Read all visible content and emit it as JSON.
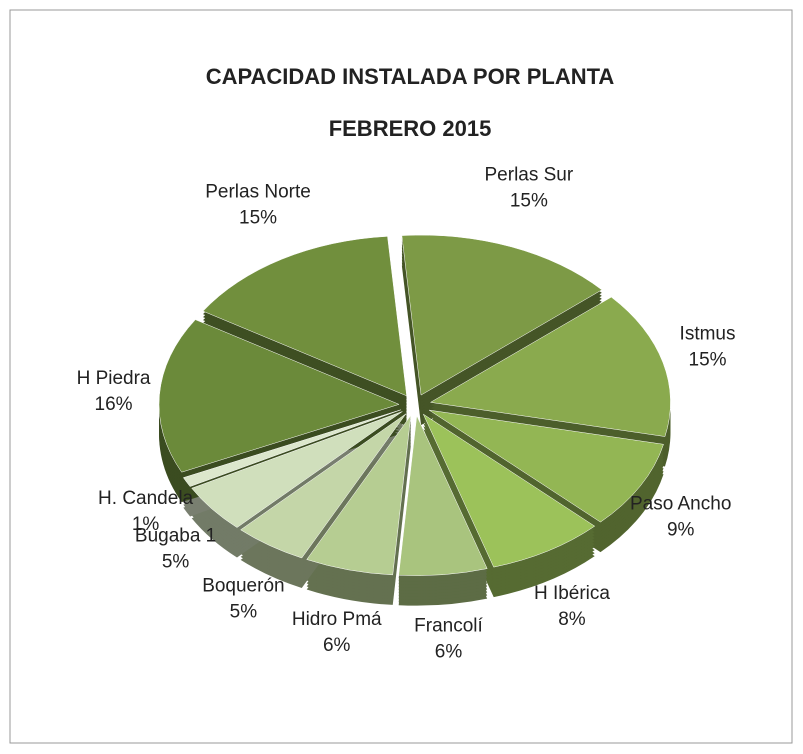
{
  "chart_data": {
    "type": "pie",
    "title": "CAPACIDAD  INSTALADA POR  PLANTA",
    "subtitle": "FEBRERO   2015",
    "categories": [
      "Perlas Sur",
      "Istmus",
      "Paso Ancho",
      "H Ibérica",
      "Francolí",
      "Hidro Pmá",
      "Boquerón",
      "Bugaba 1",
      "H. Candela",
      "H Piedra",
      "Perlas Norte"
    ],
    "values": [
      15,
      15,
      9,
      8,
      6,
      6,
      5,
      5,
      1,
      16,
      15
    ],
    "value_labels": [
      "15%",
      "15%",
      "9%",
      "8%",
      "6%",
      "6%",
      "5%",
      "5%",
      "1%",
      "16%",
      "15%"
    ],
    "colors": [
      "#7d9a46",
      "#8aaa4e",
      "#93b654",
      "#9cc25a",
      "#a9c47e",
      "#b6cd92",
      "#c4d6a8",
      "#d0dfbc",
      "#dce7cc",
      "#6b8a3a",
      "#718f3d"
    ]
  }
}
